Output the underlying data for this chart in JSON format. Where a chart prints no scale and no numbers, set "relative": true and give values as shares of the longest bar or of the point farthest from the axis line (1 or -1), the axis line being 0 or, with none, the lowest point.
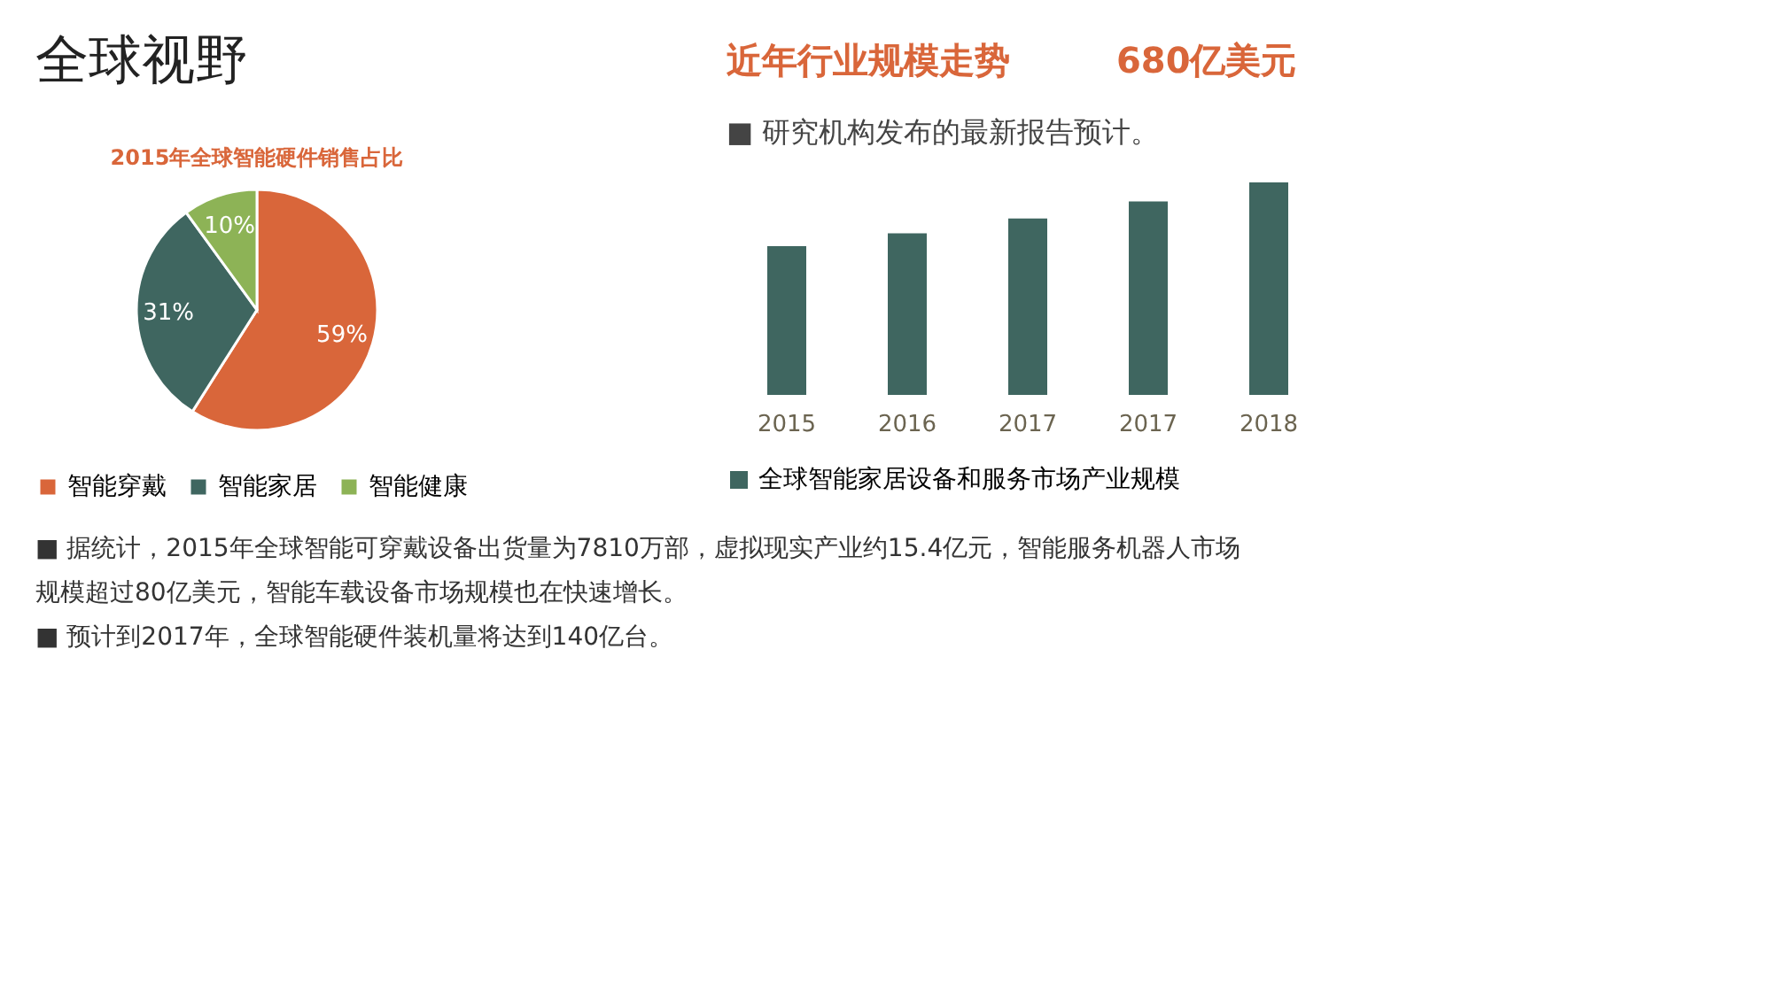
{
  "chart_data": [
    {
      "type": "pie",
      "title": "2015年全球智能硬件销售占比",
      "categories": [
        "智能穿戴",
        "智能家居",
        "智能健康"
      ],
      "values": [
        59,
        31,
        10
      ],
      "colors": [
        "#d9663a",
        "#3f6660",
        "#8db356"
      ],
      "value_labels": [
        "59%",
        "31%",
        "10%"
      ],
      "legend": "bottom",
      "annotations": [
        "全球视野",
        "■ 据统计，2015年全球智能可穿戴设备出货量为7810万部，虚拟现实产业约15.4亿元，智能服务机器人市场",
        "规模超过80亿美元，智能车载设备市场规模也在快速增长。",
        "■ 预计到2017年，全球智能硬件装机量将达到140亿台。"
      ]
    },
    {
      "type": "bar",
      "title": "近年行业规模走势",
      "categories": [
        "2015",
        "2016",
        "2017",
        "2017",
        "2018"
      ],
      "relative": true,
      "legend": "bottom",
      "series": [
        {
          "name": "全球智能家居设备和服务市场产业规模",
          "color": "#3f6660",
          "values": [
            0.7,
            0.76,
            0.83,
            0.91,
            1
          ]
        }
      ],
      "annotations": [
        "680亿美元",
        "■ 研究机构发布的最新报告预计。"
      ]
    }
  ]
}
